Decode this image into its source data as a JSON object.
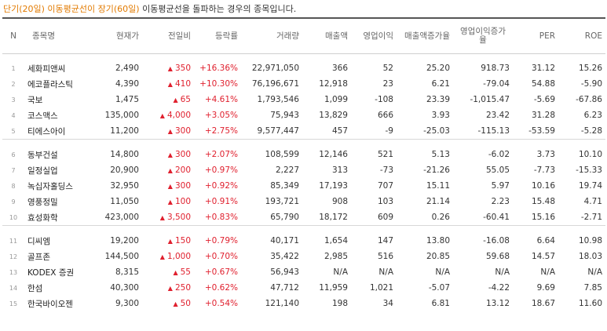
{
  "caption": {
    "highlight": "단기(20일) 이동평균선이 장기(60일)",
    "rest": " 이동평균선을 돌파하는 경우의 종목입니다."
  },
  "headers": [
    "N",
    "종목명",
    "현재가",
    "전일비",
    "등락률",
    "거래량",
    "매출액",
    "영업이익",
    "매출액증가율",
    "영업이익증가율",
    "PER",
    "ROE"
  ],
  "up_symbol": "▲",
  "groups": [
    [
      {
        "n": "1",
        "name": "세화피앤씨",
        "price": "2,490",
        "diff": "350",
        "rate": "+16.36%",
        "volume": "22,971,050",
        "sales": "366",
        "op": "52",
        "sales_growth": "25.20",
        "op_growth": "918.73",
        "per": "31.12",
        "roe": "15.26"
      },
      {
        "n": "2",
        "name": "에코플라스틱",
        "price": "4,390",
        "diff": "410",
        "rate": "+10.30%",
        "volume": "76,196,671",
        "sales": "12,918",
        "op": "23",
        "sales_growth": "6.21",
        "op_growth": "-79.04",
        "per": "54.88",
        "roe": "-5.90"
      },
      {
        "n": "3",
        "name": "국보",
        "price": "1,475",
        "diff": "65",
        "rate": "+4.61%",
        "volume": "1,793,546",
        "sales": "1,099",
        "op": "-108",
        "sales_growth": "23.39",
        "op_growth": "-1,015.47",
        "per": "-5.69",
        "roe": "-67.86"
      },
      {
        "n": "4",
        "name": "코스맥스",
        "price": "135,000",
        "diff": "4,000",
        "rate": "+3.05%",
        "volume": "75,943",
        "sales": "13,829",
        "op": "666",
        "sales_growth": "3.93",
        "op_growth": "23.42",
        "per": "31.28",
        "roe": "6.23"
      },
      {
        "n": "5",
        "name": "티에스아이",
        "price": "11,200",
        "diff": "300",
        "rate": "+2.75%",
        "volume": "9,577,447",
        "sales": "457",
        "op": "-9",
        "sales_growth": "-25.03",
        "op_growth": "-115.13",
        "per": "-53.59",
        "roe": "-5.28"
      }
    ],
    [
      {
        "n": "6",
        "name": "동부건설",
        "price": "14,800",
        "diff": "300",
        "rate": "+2.07%",
        "volume": "108,599",
        "sales": "12,146",
        "op": "521",
        "sales_growth": "5.13",
        "op_growth": "-6.02",
        "per": "3.73",
        "roe": "10.10"
      },
      {
        "n": "7",
        "name": "일정실업",
        "price": "20,900",
        "diff": "200",
        "rate": "+0.97%",
        "volume": "2,227",
        "sales": "313",
        "op": "-73",
        "sales_growth": "-21.26",
        "op_growth": "55.05",
        "per": "-7.73",
        "roe": "-15.33"
      },
      {
        "n": "8",
        "name": "녹십자홀딩스",
        "price": "32,950",
        "diff": "300",
        "rate": "+0.92%",
        "volume": "85,349",
        "sales": "17,193",
        "op": "707",
        "sales_growth": "15.11",
        "op_growth": "5.97",
        "per": "10.16",
        "roe": "19.74"
      },
      {
        "n": "9",
        "name": "영풍정밀",
        "price": "11,050",
        "diff": "100",
        "rate": "+0.91%",
        "volume": "193,721",
        "sales": "908",
        "op": "103",
        "sales_growth": "21.14",
        "op_growth": "2.23",
        "per": "15.48",
        "roe": "4.71"
      },
      {
        "n": "10",
        "name": "효성화학",
        "price": "423,000",
        "diff": "3,500",
        "rate": "+0.83%",
        "volume": "65,790",
        "sales": "18,172",
        "op": "609",
        "sales_growth": "0.26",
        "op_growth": "-60.41",
        "per": "15.16",
        "roe": "-2.71"
      }
    ],
    [
      {
        "n": "11",
        "name": "디씨엠",
        "price": "19,200",
        "diff": "150",
        "rate": "+0.79%",
        "volume": "40,171",
        "sales": "1,654",
        "op": "147",
        "sales_growth": "13.80",
        "op_growth": "-16.08",
        "per": "6.64",
        "roe": "10.98"
      },
      {
        "n": "12",
        "name": "골프존",
        "price": "144,500",
        "diff": "1,000",
        "rate": "+0.70%",
        "volume": "35,422",
        "sales": "2,985",
        "op": "516",
        "sales_growth": "20.85",
        "op_growth": "59.68",
        "per": "14.57",
        "roe": "18.03"
      },
      {
        "n": "13",
        "name": "KODEX 증권",
        "price": "8,315",
        "diff": "55",
        "rate": "+0.67%",
        "volume": "56,943",
        "sales": "N/A",
        "op": "N/A",
        "sales_growth": "N/A",
        "op_growth": "N/A",
        "per": "N/A",
        "roe": "N/A"
      },
      {
        "n": "14",
        "name": "한섬",
        "price": "40,300",
        "diff": "250",
        "rate": "+0.62%",
        "volume": "47,712",
        "sales": "11,959",
        "op": "1,021",
        "sales_growth": "-5.07",
        "op_growth": "-4.22",
        "per": "9.69",
        "roe": "7.85"
      },
      {
        "n": "15",
        "name": "한국바이오젠",
        "price": "9,300",
        "diff": "50",
        "rate": "+0.54%",
        "volume": "121,140",
        "sales": "198",
        "op": "34",
        "sales_growth": "6.81",
        "op_growth": "13.12",
        "per": "18.67",
        "roe": "11.60"
      }
    ]
  ]
}
